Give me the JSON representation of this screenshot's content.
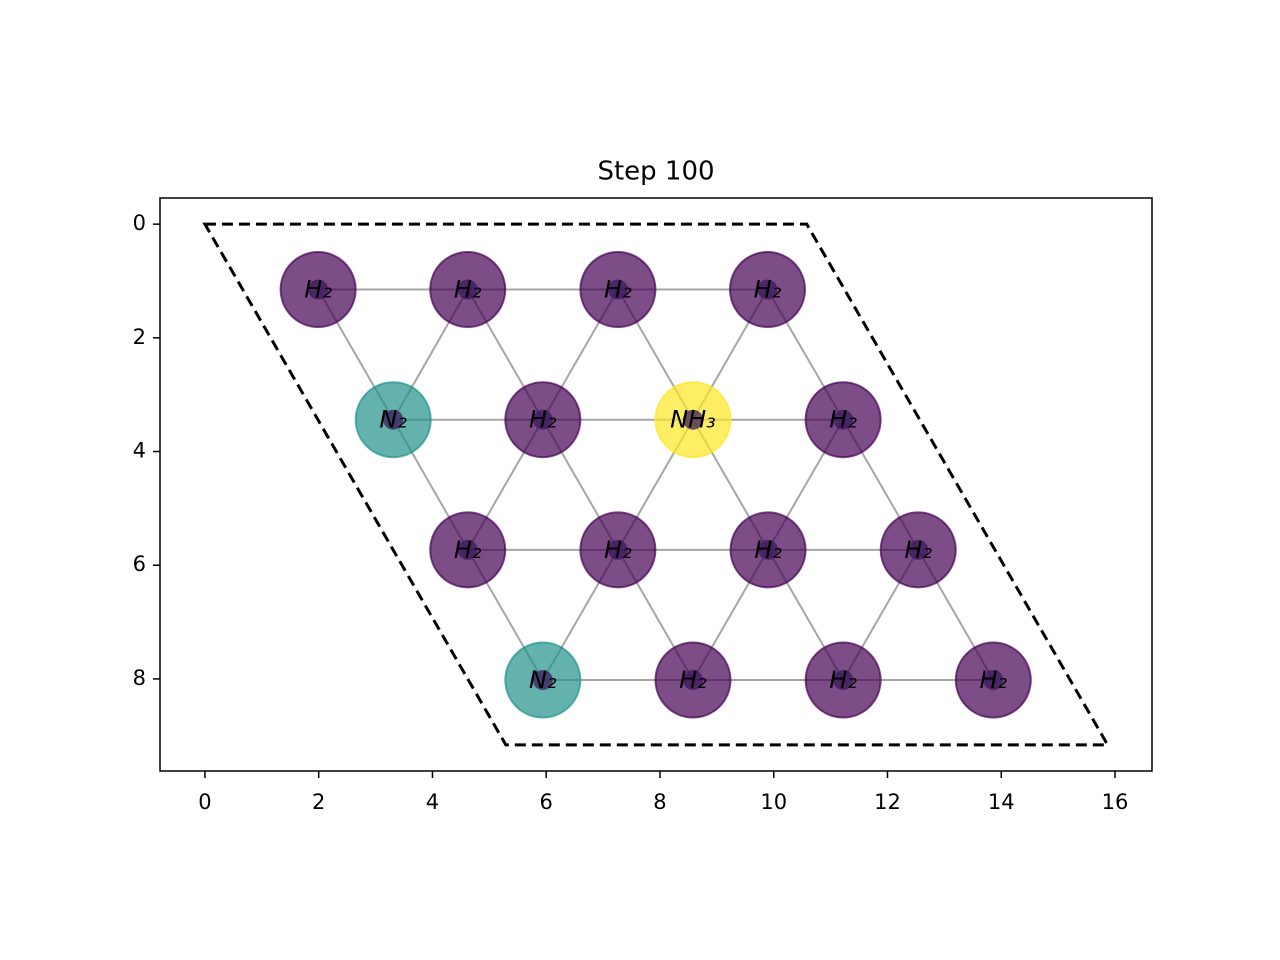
{
  "chart_data": {
    "type": "scatter",
    "title": "Step 100",
    "x": [
      1.99,
      4.62,
      7.26,
      9.89,
      3.31,
      5.94,
      8.58,
      11.22,
      4.62,
      7.26,
      9.9,
      12.54,
      5.94,
      8.58,
      11.22,
      13.86
    ],
    "y": [
      1.15,
      1.15,
      1.15,
      1.15,
      3.44,
      3.44,
      3.44,
      3.44,
      5.73,
      5.73,
      5.73,
      5.73,
      8.02,
      8.02,
      8.02,
      8.02
    ],
    "labels": [
      "H₂",
      "H₂",
      "H₂",
      "H₂",
      "N₂",
      "H₂",
      "NH₃",
      "H₂",
      "H₂",
      "H₂",
      "H₂",
      "H₂",
      "N₂",
      "H₂",
      "H₂",
      "H₂"
    ],
    "colors": [
      "#440154",
      "#440154",
      "#440154",
      "#440154",
      "#21918c",
      "#440154",
      "#fde725",
      "#440154",
      "#440154",
      "#440154",
      "#440154",
      "#440154",
      "#21918c",
      "#440154",
      "#440154",
      "#440154"
    ],
    "cell": {
      "x": [
        0,
        10.58,
        15.87,
        5.29
      ],
      "y": [
        0,
        0,
        9.16,
        9.16
      ]
    },
    "xlim": [
      -0.79,
      16.65
    ],
    "ylim": [
      9.62,
      -0.46
    ],
    "xticks": [
      0,
      2,
      4,
      6,
      8,
      10,
      12,
      14,
      16
    ],
    "yticks": [
      0,
      2,
      4,
      6,
      8
    ]
  }
}
